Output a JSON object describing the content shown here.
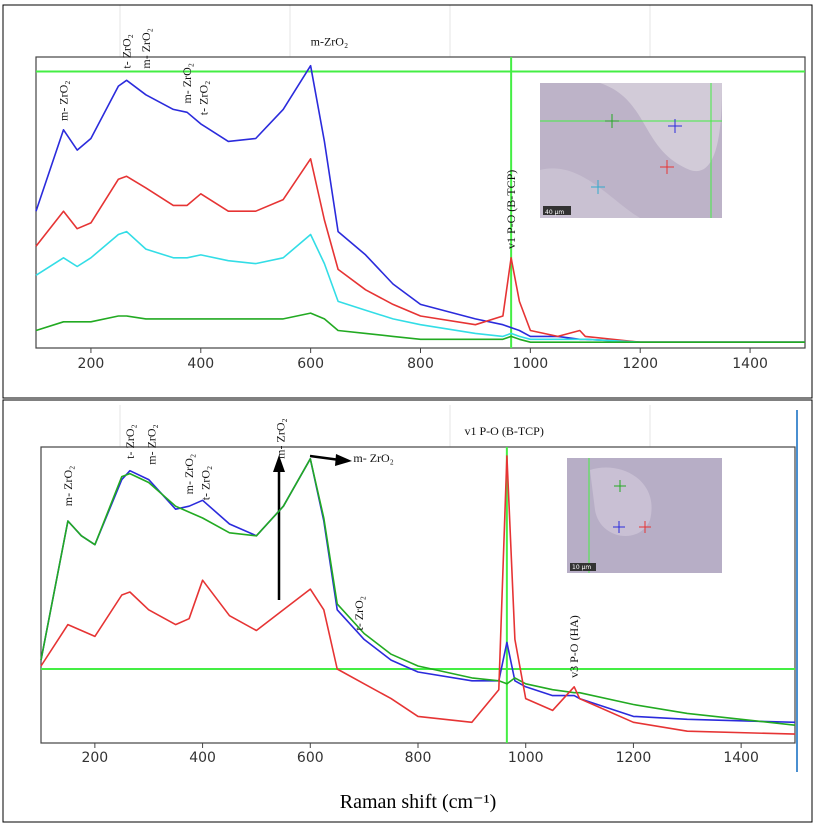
{
  "chart_data": [
    {
      "type": "line",
      "x": [
        100,
        150,
        175,
        200,
        250,
        265,
        300,
        350,
        375,
        400,
        450,
        500,
        550,
        600,
        625,
        650,
        700,
        750,
        800,
        900,
        950,
        965,
        980,
        1000,
        1050,
        1090,
        1100,
        1200,
        1300,
        1500
      ],
      "xlim": [
        100,
        1500
      ],
      "xticks": [
        200,
        400,
        600,
        800,
        1000,
        1200,
        1400
      ],
      "ylim": [
        0,
        100
      ],
      "series": [
        {
          "color": "#2b2bdc",
          "values": [
            47,
            75,
            68,
            72,
            90,
            92,
            87,
            82,
            81,
            77,
            71,
            72,
            82,
            97,
            71,
            40,
            32,
            22,
            15,
            10,
            8,
            7,
            6,
            4,
            4,
            3,
            3,
            2,
            2,
            2
          ]
        },
        {
          "color": "#e63434",
          "values": [
            35,
            47,
            41,
            43,
            58,
            59,
            55,
            49,
            49,
            53,
            47,
            47,
            51,
            65,
            44,
            27,
            20,
            15,
            11,
            8,
            11,
            31,
            16,
            6,
            4,
            6,
            4,
            2,
            2,
            2
          ]
        },
        {
          "color": "#33dde6",
          "values": [
            25,
            31,
            28,
            31,
            39,
            40,
            34,
            31,
            31,
            32,
            30,
            29,
            31,
            39,
            29,
            16,
            13,
            10,
            8,
            5,
            4,
            5,
            4,
            3,
            3,
            3,
            3,
            2,
            2,
            2
          ]
        },
        {
          "color": "#22aa22",
          "values": [
            6,
            9,
            9,
            9,
            11,
            11,
            10,
            10,
            10,
            10,
            10,
            10,
            10,
            12,
            10,
            6,
            5,
            4,
            3,
            3,
            3,
            4,
            3,
            2,
            2,
            2,
            2,
            2,
            2,
            2
          ]
        }
      ],
      "hline": 95,
      "vline": 965,
      "guide_color": "#44ee44",
      "annotations": [
        {
          "text": "m- ZrO₂",
          "x": 150,
          "y": 78,
          "rotate": true
        },
        {
          "text": "t- ZrO₂",
          "x": 265,
          "y": 96,
          "rotate": true
        },
        {
          "text": "m- ZrO₂",
          "x": 300,
          "y": 96,
          "rotate": true
        },
        {
          "text": "m- ZrO₂",
          "x": 375,
          "y": 84,
          "rotate": true
        },
        {
          "text": "t- ZrO₂",
          "x": 405,
          "y": 80,
          "rotate": true
        },
        {
          "text": "m-ZrO₂",
          "x": 600,
          "y": 104,
          "rotate": false
        },
        {
          "text": "v1 P-O (B-TCP)",
          "x": 965,
          "y": 34,
          "rotate": true
        }
      ],
      "inset_scale": "40 µm"
    },
    {
      "type": "line",
      "x": [
        100,
        150,
        175,
        200,
        250,
        265,
        300,
        350,
        375,
        400,
        450,
        500,
        550,
        600,
        625,
        650,
        700,
        750,
        800,
        900,
        950,
        965,
        980,
        1000,
        1050,
        1090,
        1100,
        1200,
        1300,
        1500
      ],
      "xlim": [
        100,
        1500
      ],
      "xticks": [
        200,
        400,
        600,
        800,
        1000,
        1200,
        1400
      ],
      "ylim": [
        0,
        100
      ],
      "series": [
        {
          "color": "#2b2bdc",
          "values": [
            28,
            75,
            70,
            67,
            89,
            92,
            89,
            79,
            80,
            82,
            74,
            70,
            80,
            96,
            75,
            45,
            35,
            28,
            24,
            21,
            21,
            34,
            21,
            19,
            16,
            16,
            15,
            9,
            8,
            7
          ]
        },
        {
          "color": "#22aa22",
          "values": [
            28,
            75,
            70,
            67,
            90,
            91,
            88,
            80,
            78,
            76,
            71,
            70,
            80,
            96,
            76,
            47,
            37,
            30,
            26,
            22,
            21,
            20,
            22,
            20,
            18,
            17,
            17,
            13,
            10,
            6
          ]
        },
        {
          "color": "#e63434",
          "values": [
            26,
            40,
            38,
            36,
            50,
            51,
            45,
            40,
            42,
            55,
            43,
            38,
            45,
            52,
            45,
            25,
            20,
            15,
            9,
            7,
            18,
            97,
            35,
            15,
            11,
            19,
            15,
            7,
            4,
            3
          ]
        }
      ],
      "hline": 25,
      "vline": 965,
      "guide_color": "#44ee44",
      "annotations": [
        {
          "text": "m- ZrO₂",
          "x": 150,
          "y": 80,
          "rotate": true
        },
        {
          "text": "t- ZrO₂",
          "x": 265,
          "y": 96,
          "rotate": true
        },
        {
          "text": "m- ZrO₂",
          "x": 305,
          "y": 94,
          "rotate": true
        },
        {
          "text": "m- ZrO₂",
          "x": 375,
          "y": 84,
          "rotate": true
        },
        {
          "text": "t- ZrO₂",
          "x": 405,
          "y": 82,
          "rotate": true
        },
        {
          "text": "m- ZrO₂",
          "x": 545,
          "y": 96,
          "rotate": true
        },
        {
          "text": "m- ZrO₂",
          "x": 680,
          "y": 95,
          "rotate": false
        },
        {
          "text": "t- ZrO₂",
          "x": 690,
          "y": 38,
          "rotate": true
        },
        {
          "text": "v1 P-O (B-TCP)",
          "x": 960,
          "y": 104,
          "rotate": false
        },
        {
          "text": "v3 P-O (HA)",
          "x": 1090,
          "y": 22,
          "rotate": true
        }
      ],
      "inset_scale": "10 µm",
      "xlabel": "Raman shift (cm⁻¹)"
    }
  ]
}
